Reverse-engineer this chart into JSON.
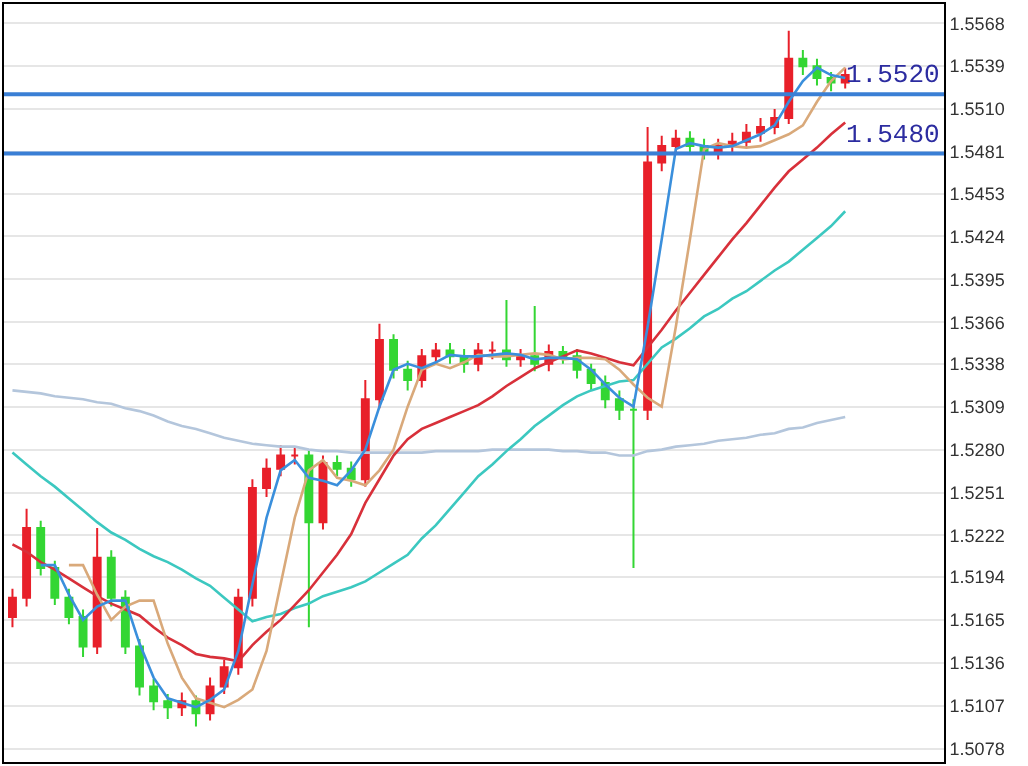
{
  "chart_data": {
    "type": "candlestick",
    "categories": [
      null,
      null,
      null,
      null,
      null,
      null,
      null,
      null,
      null,
      null,
      null,
      null,
      null,
      null,
      null,
      null,
      null,
      null,
      null,
      null,
      null,
      null,
      null,
      null,
      null,
      null,
      null,
      null,
      null,
      null,
      null,
      null,
      null,
      null,
      null,
      null,
      null,
      null,
      null,
      null,
      null,
      null,
      null,
      null,
      null,
      null,
      null,
      null,
      null,
      null,
      null,
      null,
      null,
      null,
      null,
      null,
      null,
      null,
      null,
      null
    ],
    "ohlc": [
      [
        1.5167,
        1.5186,
        1.516,
        1.518
      ],
      [
        1.518,
        1.524,
        1.5174,
        1.5227
      ],
      [
        1.5227,
        1.5232,
        1.5195,
        1.52
      ],
      [
        1.52,
        1.5205,
        1.5175,
        1.518
      ],
      [
        1.518,
        1.5186,
        1.5162,
        1.5167
      ],
      [
        1.5167,
        1.5172,
        1.514,
        1.5147
      ],
      [
        1.5147,
        1.5227,
        1.5142,
        1.5207
      ],
      [
        1.5207,
        1.5212,
        1.5174,
        1.518
      ],
      [
        1.518,
        1.5185,
        1.5142,
        1.5147
      ],
      [
        1.5147,
        1.5152,
        1.5114,
        1.512
      ],
      [
        1.512,
        1.5125,
        1.5104,
        1.511
      ],
      [
        1.511,
        1.5115,
        1.5098,
        1.5106
      ],
      [
        1.5106,
        1.5116,
        1.51,
        1.511
      ],
      [
        1.511,
        1.5114,
        1.5093,
        1.5102
      ],
      [
        1.5102,
        1.5126,
        1.5097,
        1.512
      ],
      [
        1.512,
        1.5138,
        1.5115,
        1.5133
      ],
      [
        1.5133,
        1.5186,
        1.5128,
        1.518
      ],
      [
        1.518,
        1.526,
        1.5174,
        1.5254
      ],
      [
        1.5254,
        1.5274,
        1.5248,
        1.5267
      ],
      [
        1.5267,
        1.5283,
        1.5262,
        1.5276
      ],
      [
        1.5276,
        1.5282,
        1.527,
        1.5276
      ],
      [
        1.5276,
        1.528,
        1.516,
        1.5231
      ],
      [
        1.5231,
        1.5276,
        1.5226,
        1.5271
      ],
      [
        1.5271,
        1.5276,
        1.5262,
        1.5267
      ],
      [
        1.5267,
        1.5272,
        1.5255,
        1.526
      ],
      [
        1.526,
        1.5327,
        1.5255,
        1.5314
      ],
      [
        1.5314,
        1.5365,
        1.5308,
        1.5354
      ],
      [
        1.5354,
        1.5358,
        1.5328,
        1.5334
      ],
      [
        1.5334,
        1.534,
        1.532,
        1.5327
      ],
      [
        1.5327,
        1.5348,
        1.5322,
        1.5343
      ],
      [
        1.5343,
        1.5352,
        1.5338,
        1.5347
      ],
      [
        1.5347,
        1.5352,
        1.5338,
        1.5343
      ],
      [
        1.5343,
        1.5348,
        1.5332,
        1.5338
      ],
      [
        1.5338,
        1.5352,
        1.5333,
        1.5347
      ],
      [
        1.5347,
        1.5353,
        1.5341,
        1.5347
      ],
      [
        1.5347,
        1.5381,
        1.5336,
        1.5341
      ],
      [
        1.5341,
        1.5348,
        1.5336,
        1.5343
      ],
      [
        1.5343,
        1.5377,
        1.5333,
        1.5338
      ],
      [
        1.5338,
        1.5351,
        1.5333,
        1.5346
      ],
      [
        1.5346,
        1.535,
        1.5338,
        1.5343
      ],
      [
        1.5343,
        1.5348,
        1.5328,
        1.5334
      ],
      [
        1.5334,
        1.5338,
        1.532,
        1.5325
      ],
      [
        1.5325,
        1.533,
        1.5308,
        1.5314
      ],
      [
        1.5314,
        1.532,
        1.53,
        1.5307
      ],
      [
        1.5307,
        1.5314,
        1.52,
        1.5307
      ],
      [
        1.5307,
        1.5498,
        1.53,
        1.5474
      ],
      [
        1.5474,
        1.5492,
        1.5468,
        1.5485
      ],
      [
        1.5485,
        1.5496,
        1.548,
        1.549
      ],
      [
        1.549,
        1.5495,
        1.548,
        1.5485
      ],
      [
        1.5485,
        1.549,
        1.5476,
        1.5481
      ],
      [
        1.5481,
        1.549,
        1.5476,
        1.5485
      ],
      [
        1.5485,
        1.5494,
        1.548,
        1.5488
      ],
      [
        1.5488,
        1.55,
        1.5484,
        1.5494
      ],
      [
        1.5494,
        1.5504,
        1.5488,
        1.5498
      ],
      [
        1.5498,
        1.551,
        1.5493,
        1.5504
      ],
      [
        1.5504,
        1.5563,
        1.55,
        1.5544
      ],
      [
        1.5544,
        1.555,
        1.5533,
        1.5539
      ],
      [
        1.5539,
        1.5544,
        1.5526,
        1.5531
      ],
      [
        1.5531,
        1.5535,
        1.5522,
        1.5528
      ],
      [
        1.5528,
        1.5538,
        1.5524,
        1.5533
      ]
    ],
    "series": [
      {
        "type": "line",
        "color": "#b4c6dc",
        "values": [
          1.532,
          1.5319,
          1.5318,
          1.5316,
          1.5315,
          1.5314,
          1.5312,
          1.5311,
          1.5308,
          1.5306,
          1.5303,
          1.5299,
          1.5296,
          1.5294,
          1.5291,
          1.5288,
          1.5286,
          1.5284,
          1.5283,
          1.5282,
          1.5282,
          1.528,
          1.5279,
          1.5279,
          1.5278,
          1.5278,
          1.5278,
          1.5278,
          1.5278,
          1.5278,
          1.5279,
          1.5279,
          1.5279,
          1.5279,
          1.528,
          1.528,
          1.528,
          1.528,
          1.528,
          1.5279,
          1.5279,
          1.5278,
          1.5278,
          1.5276,
          1.5276,
          1.5279,
          1.528,
          1.5282,
          1.5283,
          1.5284,
          1.5286,
          1.5287,
          1.5288,
          1.529,
          1.5291,
          1.5294,
          1.5295,
          1.5298,
          1.53,
          1.5302
        ]
      },
      {
        "type": "line",
        "color": "#3cc8c0",
        "values": [
          1.5278,
          1.527,
          1.5262,
          1.5255,
          1.5247,
          1.5239,
          1.5231,
          1.5224,
          1.5219,
          1.5213,
          1.5208,
          1.5204,
          1.5199,
          1.5193,
          1.5188,
          1.518,
          1.5172,
          1.5164,
          1.5167,
          1.5169,
          1.5173,
          1.5176,
          1.5181,
          1.5184,
          1.5187,
          1.5191,
          1.5197,
          1.5203,
          1.5209,
          1.522,
          1.5229,
          1.524,
          1.5251,
          1.5262,
          1.527,
          1.5279,
          1.5287,
          1.5296,
          1.5303,
          1.531,
          1.5316,
          1.532,
          1.5323,
          1.5326,
          1.5327,
          1.5338,
          1.5349,
          1.5355,
          1.5362,
          1.537,
          1.5375,
          1.5382,
          1.5387,
          1.5394,
          1.5401,
          1.5407,
          1.5415,
          1.5423,
          1.5431,
          1.5441
        ]
      },
      {
        "type": "line",
        "color": "#d8303a",
        "values": [
          1.5216,
          1.5211,
          1.5204,
          1.5199,
          1.5193,
          1.5187,
          1.5181,
          1.5176,
          1.5172,
          1.5168,
          1.516,
          1.5153,
          1.5148,
          1.5142,
          1.514,
          1.5139,
          1.5137,
          1.5148,
          1.5157,
          1.5165,
          1.5175,
          1.5185,
          1.5197,
          1.5209,
          1.5223,
          1.5244,
          1.526,
          1.5276,
          1.5287,
          1.5294,
          1.5298,
          1.5302,
          1.5306,
          1.531,
          1.5316,
          1.5323,
          1.5329,
          1.5335,
          1.5339,
          1.5343,
          1.5347,
          1.5345,
          1.5342,
          1.5339,
          1.5337,
          1.5349,
          1.5361,
          1.5374,
          1.5386,
          1.5398,
          1.541,
          1.5422,
          1.5433,
          1.5445,
          1.5457,
          1.5468,
          1.5476,
          1.5484,
          1.5493,
          1.5501
        ]
      },
      {
        "type": "line",
        "color": "#d9a97a",
        "values": [
          null,
          null,
          null,
          null,
          1.5202,
          1.5202,
          1.5182,
          1.5165,
          1.5174,
          1.5178,
          1.5178,
          1.5149,
          1.5126,
          1.5112,
          1.5109,
          1.5106,
          1.5111,
          1.5118,
          1.5144,
          1.5189,
          1.5234,
          1.5266,
          1.5273,
          1.5261,
          1.5259,
          1.5256,
          1.5266,
          1.528,
          1.5309,
          1.5334,
          1.5338,
          1.5335,
          1.5339,
          1.5344,
          1.5343,
          1.5343,
          1.5344,
          1.5345,
          1.5344,
          1.5341,
          1.5342,
          1.5342,
          1.5341,
          1.5334,
          1.5324,
          1.5315,
          1.5309,
          1.5363,
          1.5422,
          1.5483,
          1.5487,
          1.5485,
          1.5484,
          1.5485,
          1.5489,
          1.5493,
          1.5499,
          1.5515,
          1.5529,
          1.5538
        ]
      },
      {
        "type": "line",
        "color": "#3a8fdc",
        "values": [
          null,
          null,
          1.5202,
          1.5202,
          1.5182,
          1.5165,
          1.5174,
          1.5178,
          1.5178,
          1.5149,
          1.5126,
          1.5112,
          1.5109,
          1.5106,
          1.5111,
          1.5118,
          1.5144,
          1.5189,
          1.5234,
          1.5266,
          1.5273,
          1.5261,
          1.5259,
          1.5256,
          1.5266,
          1.528,
          1.5309,
          1.5334,
          1.5338,
          1.5335,
          1.5339,
          1.5344,
          1.5343,
          1.5343,
          1.5344,
          1.5345,
          1.5344,
          1.5341,
          1.5342,
          1.5342,
          1.5341,
          1.5334,
          1.5324,
          1.5315,
          1.5309,
          1.5363,
          1.5422,
          1.5483,
          1.5487,
          1.5485,
          1.5484,
          1.5485,
          1.5489,
          1.5493,
          1.5499,
          1.5515,
          1.5529,
          1.5538,
          1.5533,
          1.5531
        ]
      }
    ],
    "ref_lines": [
      {
        "axis": "y",
        "value": 1.552,
        "label": "1.5520",
        "color": "#3a7fd5"
      },
      {
        "axis": "y",
        "value": 1.548,
        "label": "1.5480",
        "color": "#3a7fd5"
      }
    ],
    "ylim": [
      1.5069,
      1.5581
    ],
    "yticks": [
      1.5078,
      1.5107,
      1.5136,
      1.5165,
      1.5194,
      1.5222,
      1.5251,
      {
        "value": 1.528,
        "label": "1.5280"
      },
      1.5309,
      1.5338,
      1.5366,
      1.5395,
      1.5424,
      1.5453,
      1.5481,
      {
        "value": 1.551,
        "label": "1.5510"
      },
      1.5539,
      1.5568
    ],
    "grid": "y"
  }
}
